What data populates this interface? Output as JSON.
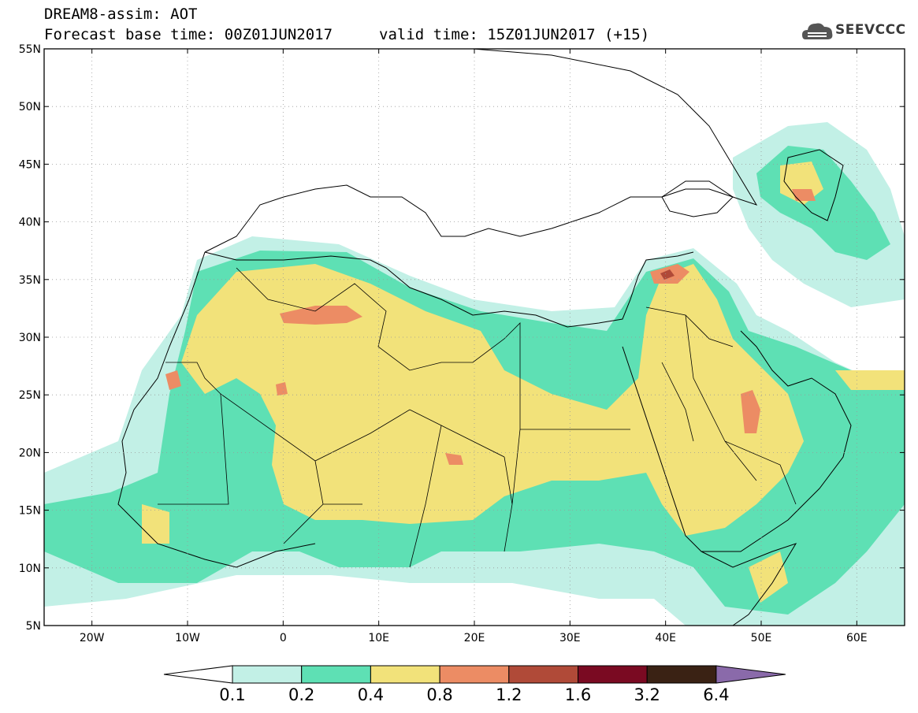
{
  "header": {
    "title_line1": "DREAM8-assim: AOT",
    "title_line2": "Forecast base time: 00Z01JUN2017",
    "valid_time": "valid time: 15Z01JUN2017 (+15)",
    "logo_text": "SEEVCCC"
  },
  "map": {
    "lon_range": [
      -25,
      65
    ],
    "lat_range": [
      5,
      55
    ],
    "lon_labels": [
      "20W",
      "10W",
      "0",
      "10E",
      "20E",
      "30E",
      "40E",
      "50E",
      "60E"
    ],
    "lat_labels": [
      "5N",
      "10N",
      "15N",
      "20N",
      "25N",
      "30N",
      "35N",
      "40N",
      "45N",
      "50N",
      "55N"
    ]
  },
  "colorbar": {
    "labels": [
      "0.1",
      "0.2",
      "0.4",
      "0.8",
      "1.2",
      "1.6",
      "3.2",
      "6.4"
    ],
    "colors": [
      "#ffffff",
      "#c2f0e6",
      "#5ee0b4",
      "#f2e27a",
      "#ec8c64",
      "#b04a38",
      "#7a0a22",
      "#3a2214",
      "#8a6aaa"
    ]
  },
  "colors": {
    "aot_0_1": "#c2f0e6",
    "aot_0_2": "#5ee0b4",
    "aot_0_4": "#f2e27a",
    "aot_0_8": "#ec8c64",
    "aot_1_2": "#b04a38"
  }
}
